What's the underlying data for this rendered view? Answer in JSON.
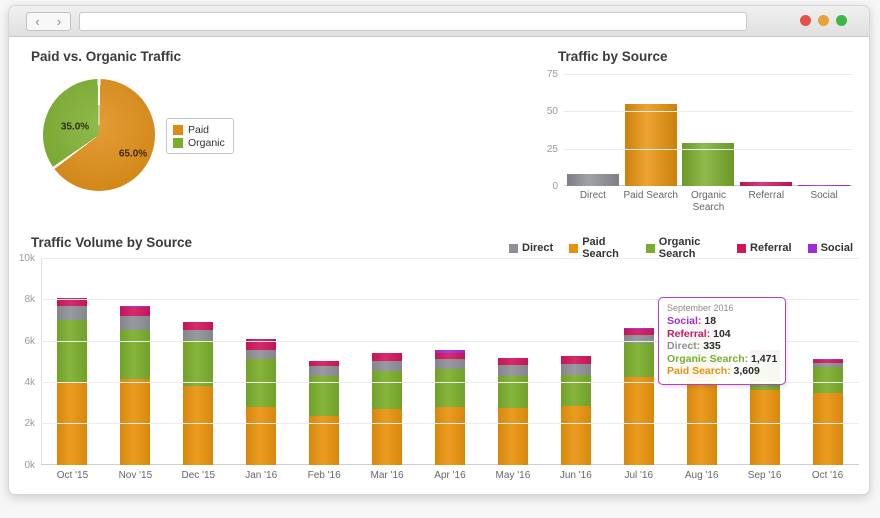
{
  "browser": {
    "back_icon": "‹",
    "forward_icon": "›",
    "url_value": "",
    "traffic_light_colors": [
      "#e2514a",
      "#e5a33b",
      "#3fb748"
    ]
  },
  "chart_data": [
    {
      "type": "pie",
      "title": "Paid vs. Organic Traffic",
      "labels": [
        "Paid",
        "Organic"
      ],
      "values": [
        65.0,
        35.0
      ],
      "display_labels": [
        "65.0%",
        "35.0%"
      ],
      "colors": [
        "#dd8a10",
        "#7aad2b"
      ],
      "legend_position": "right"
    },
    {
      "type": "bar",
      "title": "Traffic by Source",
      "categories": [
        "Direct",
        "Paid Search",
        "Organic Search",
        "Referral",
        "Social"
      ],
      "values": [
        8,
        55,
        29,
        3,
        1
      ],
      "colors": [
        "#8f8f98",
        "#e8920c",
        "#7aad2b",
        "#d1175c",
        "#a02cd6"
      ],
      "ylim": [
        0,
        75
      ],
      "yticks": [
        0,
        25,
        50,
        75
      ],
      "grid": true,
      "legend_position": "none"
    },
    {
      "type": "bar",
      "subtype": "stacked",
      "title": "Traffic Volume by Source",
      "categories": [
        "Oct '15",
        "Nov '15",
        "Dec '15",
        "Jan '16",
        "Feb '16",
        "Mar '16",
        "Apr '16",
        "May '16",
        "Jun '16",
        "Jul '16",
        "Aug '16",
        "Sep '16",
        "Oct '16"
      ],
      "series": [
        {
          "name": "Paid Search",
          "color": "#e8920c",
          "values": [
            3950,
            4150,
            3800,
            2800,
            2350,
            2700,
            2800,
            2750,
            2850,
            4250,
            4900,
            3609,
            3450
          ]
        },
        {
          "name": "Organic Search",
          "color": "#7aad2b",
          "values": [
            3050,
            2350,
            2250,
            2300,
            1950,
            1850,
            1850,
            1550,
            1500,
            1650,
            1450,
            1471,
            1250
          ]
        },
        {
          "name": "Direct",
          "color": "#8f8f98",
          "values": [
            700,
            700,
            450,
            470,
            450,
            480,
            450,
            500,
            500,
            380,
            350,
            335,
            200
          ]
        },
        {
          "name": "Referral",
          "color": "#d1175c",
          "values": [
            350,
            450,
            400,
            500,
            250,
            350,
            300,
            350,
            400,
            300,
            150,
            104,
            180
          ]
        },
        {
          "name": "Social",
          "color": "#a02cd6",
          "values": [
            20,
            20,
            20,
            20,
            20,
            20,
            150,
            20,
            20,
            20,
            20,
            18,
            20
          ]
        }
      ],
      "legend_order": [
        "Direct",
        "Paid Search",
        "Organic Search",
        "Referral",
        "Social"
      ],
      "legend_position": "top-right",
      "ylim": [
        0,
        10000
      ],
      "yticks": [
        "0k",
        "2k",
        "4k",
        "6k",
        "8k",
        "10k"
      ],
      "grid": true,
      "tooltip": {
        "title": "September 2016",
        "rows": [
          {
            "label": "Social",
            "value": "18",
            "color": "#a02cd6"
          },
          {
            "label": "Referral",
            "value": "104",
            "color": "#d1175c"
          },
          {
            "label": "Direct",
            "value": "335",
            "color": "#8f8f98"
          },
          {
            "label": "Organic Search",
            "value": "1,471",
            "color": "#7aad2b"
          },
          {
            "label": "Paid Search",
            "value": "3,609",
            "color": "#e8920c"
          }
        ],
        "border_color": "#b43fc0"
      }
    }
  ]
}
